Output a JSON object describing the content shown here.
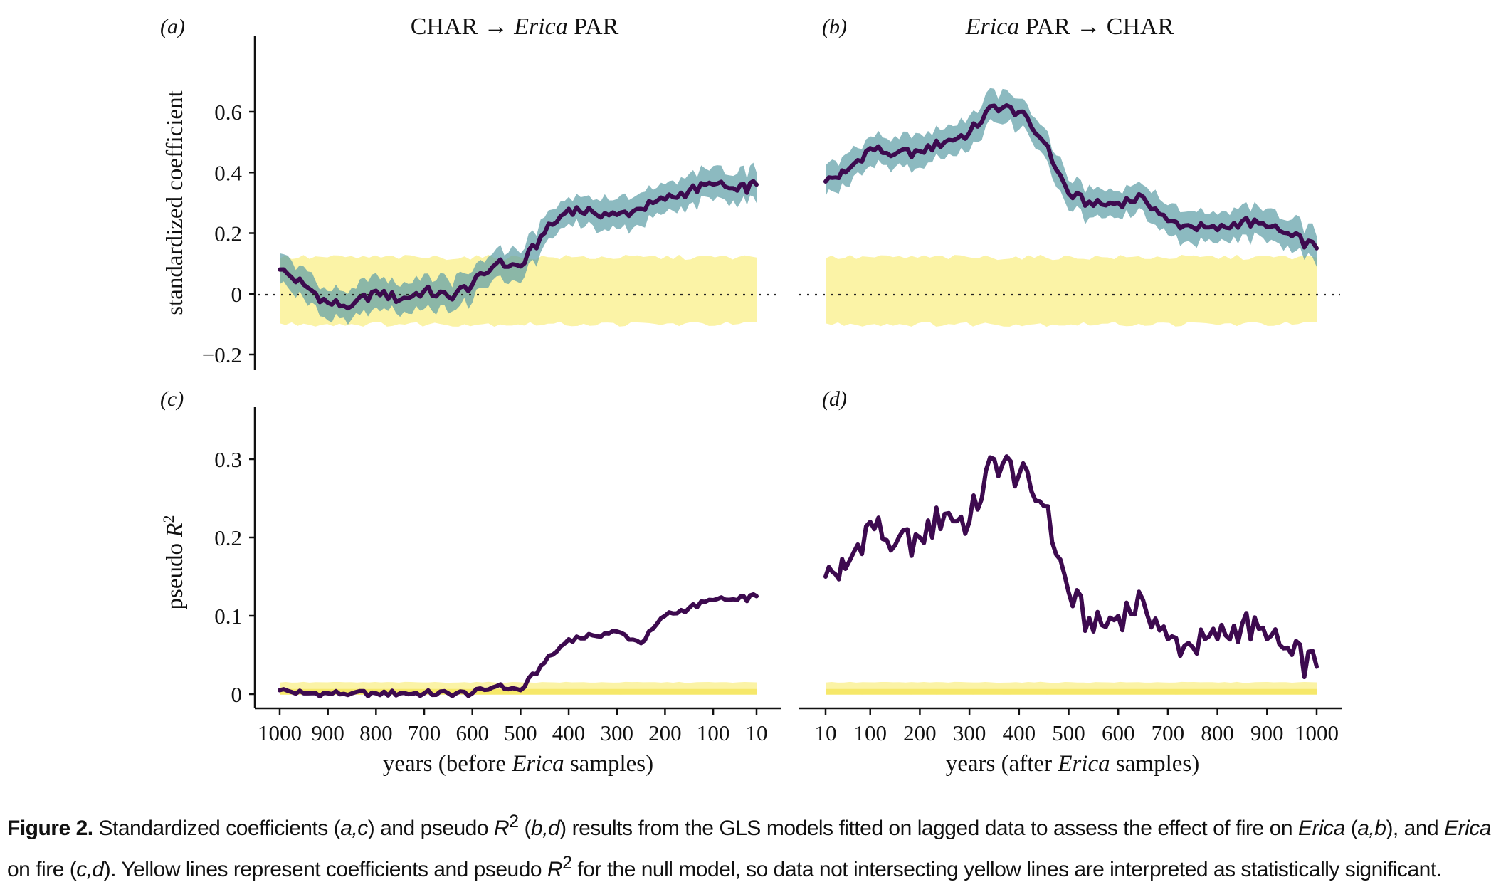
{
  "panels": {
    "a": {
      "letter": "(a)",
      "title_prefix": "CHAR → ",
      "title_italic": "Erica",
      "title_suffix": " PAR"
    },
    "b": {
      "letter": "(b)",
      "title_italic": "Erica",
      "title_suffix": " PAR → CHAR"
    },
    "c": {
      "letter": "(c)"
    },
    "d": {
      "letter": "(d)"
    }
  },
  "axes": {
    "top_ylabel": "standardized coefficient",
    "bottom_ylabel_prefix": "pseudo ",
    "bottom_ylabel_italic": "R",
    "bottom_ylabel_sup": "2",
    "left_xlabel_prefix": "years (before ",
    "left_xlabel_italic": "Erica",
    "left_xlabel_suffix": " samples)",
    "right_xlabel_prefix": "years (after ",
    "right_xlabel_italic": "Erica",
    "right_xlabel_suffix": " samples)",
    "top_yticks": [
      "0.6",
      "0.4",
      "0.2",
      "0",
      "−0.2"
    ],
    "bottom_yticks": [
      "0.3",
      "0.2",
      "0.1",
      "0"
    ],
    "left_xticks": [
      "1000",
      "900",
      "800",
      "700",
      "600",
      "500",
      "400",
      "300",
      "200",
      "100",
      "10"
    ],
    "right_xticks": [
      "10",
      "100",
      "200",
      "300",
      "400",
      "500",
      "600",
      "700",
      "800",
      "900",
      "1000"
    ]
  },
  "caption": {
    "label": "Figure 2.",
    "t1": " Standardized coefficients (",
    "i1": "a,c",
    "t2": ") and pseudo ",
    "i2": "R",
    "s2": "2",
    "t3": " (",
    "i3": "b,d",
    "t4": ") results from the GLS models fitted on lagged data to assess the effect of fire on ",
    "i4": "Erica",
    "t5": " (",
    "i5": "a,b",
    "t6": "), and ",
    "i6": "Erica",
    "t7": " on fire (",
    "i7": "c,d",
    "t8": "). Yellow lines represent coefficients and pseudo ",
    "i8": "R",
    "s8": "2",
    "t9": " for the null model, so data not intersecting yellow lines are interpreted as statistically significant."
  },
  "colors": {
    "line": "#3d0a4f",
    "ci": "#5f9fa8",
    "null_band": "#fbf3a6",
    "null_line": "#f6e86a",
    "axis": "#111111"
  },
  "chart_data": [
    {
      "panel": "a",
      "type": "line",
      "xlim": [
        1000,
        10
      ],
      "ylim": [
        -0.2,
        0.6
      ],
      "x": [
        1000,
        950,
        900,
        850,
        800,
        750,
        700,
        650,
        600,
        550,
        500,
        450,
        400,
        350,
        300,
        250,
        200,
        150,
        100,
        50,
        10
      ],
      "series": [
        {
          "values": [
            0.08,
            0.03,
            -0.03,
            -0.04,
            0.01,
            -0.02,
            0.01,
            -0.01,
            0.03,
            0.1,
            0.09,
            0.2,
            0.28,
            0.27,
            0.26,
            0.28,
            0.31,
            0.34,
            0.36,
            0.34,
            0.36
          ]
        }
      ],
      "ci_halfwidth": 0.05,
      "null_band": [
        -0.1,
        0.12
      ]
    },
    {
      "panel": "b",
      "type": "line",
      "xlim": [
        10,
        1000
      ],
      "ylim": [
        -0.2,
        0.6
      ],
      "x": [
        10,
        50,
        100,
        150,
        200,
        250,
        300,
        350,
        400,
        450,
        500,
        550,
        600,
        650,
        700,
        750,
        800,
        850,
        900,
        950,
        1000
      ],
      "series": [
        {
          "values": [
            0.37,
            0.4,
            0.48,
            0.46,
            0.47,
            0.5,
            0.53,
            0.62,
            0.6,
            0.5,
            0.33,
            0.29,
            0.3,
            0.32,
            0.24,
            0.22,
            0.21,
            0.24,
            0.22,
            0.19,
            0.15
          ]
        }
      ],
      "ci_halfwidth": 0.05,
      "null_band": [
        -0.1,
        0.12
      ]
    },
    {
      "panel": "c",
      "type": "line",
      "xlim": [
        1000,
        10
      ],
      "ylim": [
        0,
        0.3
      ],
      "x": [
        1000,
        950,
        900,
        850,
        800,
        750,
        700,
        650,
        600,
        550,
        500,
        450,
        400,
        350,
        300,
        250,
        200,
        150,
        100,
        50,
        10
      ],
      "series": [
        {
          "values": [
            0.005,
            0.001,
            0.001,
            0.001,
            0.001,
            0.001,
            0.001,
            0.001,
            0.001,
            0.01,
            0.005,
            0.04,
            0.07,
            0.075,
            0.08,
            0.065,
            0.1,
            0.11,
            0.12,
            0.12,
            0.125
          ]
        }
      ],
      "null_band": [
        0,
        0.015
      ]
    },
    {
      "panel": "d",
      "type": "line",
      "xlim": [
        10,
        1000
      ],
      "ylim": [
        0,
        0.3
      ],
      "x": [
        10,
        50,
        100,
        150,
        200,
        250,
        300,
        350,
        400,
        450,
        500,
        550,
        600,
        650,
        700,
        750,
        800,
        850,
        900,
        950,
        1000
      ],
      "series": [
        {
          "values": [
            0.15,
            0.16,
            0.22,
            0.19,
            0.2,
            0.23,
            0.22,
            0.3,
            0.28,
            0.24,
            0.13,
            0.08,
            0.1,
            0.12,
            0.07,
            0.06,
            0.07,
            0.09,
            0.07,
            0.05,
            0.035
          ]
        }
      ],
      "null_band": [
        0,
        0.015
      ]
    }
  ]
}
